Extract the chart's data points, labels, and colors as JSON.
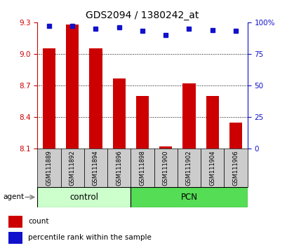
{
  "title": "GDS2094 / 1380242_at",
  "categories": [
    "GSM111889",
    "GSM111892",
    "GSM111894",
    "GSM111896",
    "GSM111898",
    "GSM111900",
    "GSM111902",
    "GSM111904",
    "GSM111906"
  ],
  "bar_values": [
    9.05,
    9.28,
    9.05,
    8.77,
    8.6,
    8.12,
    8.72,
    8.6,
    8.35
  ],
  "bar_bottom": 8.1,
  "percentile_values": [
    97,
    97,
    95,
    96,
    93,
    90,
    95,
    94,
    93
  ],
  "ylim_left": [
    8.1,
    9.3
  ],
  "ylim_right": [
    0,
    100
  ],
  "yticks_left": [
    8.1,
    8.4,
    8.7,
    9.0,
    9.3
  ],
  "yticks_right": [
    0,
    25,
    50,
    75,
    100
  ],
  "ytick_labels_right": [
    "0",
    "25",
    "50",
    "75",
    "100%"
  ],
  "bar_color": "#cc0000",
  "percentile_color": "#1111cc",
  "bar_width": 0.55,
  "control_indices": [
    0,
    1,
    2,
    3
  ],
  "pcn_indices": [
    4,
    5,
    6,
    7,
    8
  ],
  "control_label": "control",
  "pcn_label": "PCN",
  "agent_label": "agent",
  "legend_count_label": "count",
  "legend_percentile_label": "percentile rank within the sample",
  "control_bg": "#ccffcc",
  "pcn_bg": "#55dd55",
  "sample_bg": "#cccccc",
  "title_fontsize": 10,
  "tick_fontsize": 7.5,
  "label_fontsize": 8.5,
  "cat_fontsize": 6.0,
  "legend_fontsize": 7.5
}
